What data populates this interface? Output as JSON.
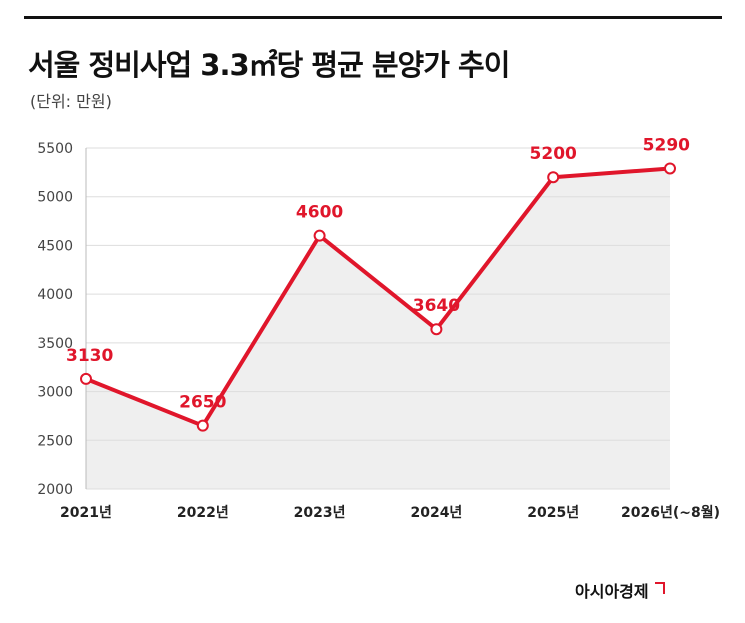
{
  "header": {
    "title": "서울 정비사업 3.3㎡당 평균 분양가 추이",
    "unit": "(단위: 만원)"
  },
  "brand": {
    "name": "아시아경제"
  },
  "chart_data": {
    "type": "line",
    "categories": [
      "2021년",
      "2022년",
      "2023년",
      "2024년",
      "2025년",
      "2026년(~8월)"
    ],
    "series": [
      {
        "values": [
          3130,
          2650,
          4600,
          3640,
          5200,
          5290
        ]
      }
    ],
    "data_labels": [
      "3130",
      "2650",
      "4600",
      "3640",
      "5200",
      "5290"
    ],
    "yticks": [
      "2000",
      "2500",
      "3000",
      "3500",
      "4000",
      "4500",
      "5000",
      "5500"
    ],
    "ylim": [
      2000,
      5500
    ],
    "grid": true,
    "colors": {
      "line": "#e0162b",
      "area": "#efefef",
      "grid": "#dddddd"
    }
  }
}
